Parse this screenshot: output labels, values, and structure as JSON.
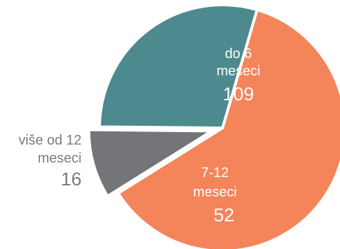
{
  "chart_data": {
    "type": "pie",
    "title": "",
    "slices": [
      {
        "label_lines": [
          "do 6",
          "meseci"
        ],
        "value": 109,
        "color": "#f4845a"
      },
      {
        "label_lines": [
          "7-12",
          "meseci"
        ],
        "value": 52,
        "color": "#4d8a8f"
      },
      {
        "label_lines": [
          "više od 12",
          "meseci"
        ],
        "value": 16,
        "color": "#737579"
      }
    ],
    "inside_label_color": "#ffffff",
    "outside_label_color": "#7a7c80",
    "exploded_slice": 2
  }
}
